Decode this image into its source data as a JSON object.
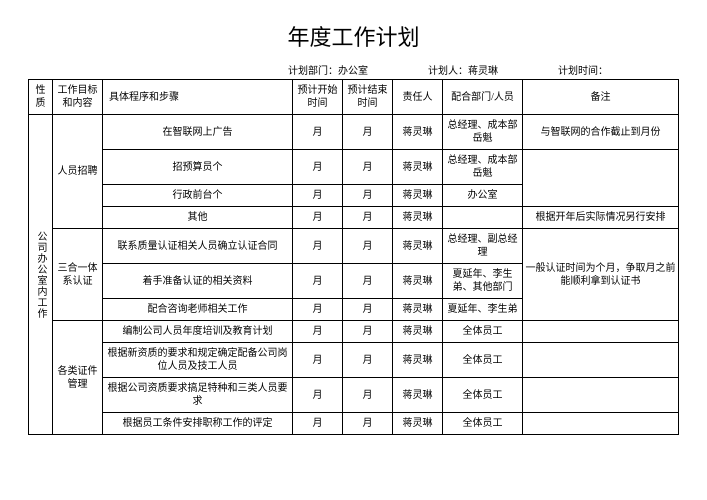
{
  "title": "年度工作计划",
  "meta": {
    "dept_label": "计划部门：",
    "dept_value": "办公室",
    "person_label": "计划人：",
    "person_value": "蒋灵琳",
    "time_label": "计划时间：",
    "time_value": ""
  },
  "headers": {
    "nature": "性质",
    "goal": "工作目标和内容",
    "step": "具体程序和步骤",
    "start": "预计开始时间",
    "end": "预计结束时间",
    "person": "责任人",
    "dept": "配合部门/人员",
    "remark": "备注"
  },
  "nature": "公司办公室内工作",
  "groups": [
    {
      "goal": "人员招聘",
      "rows": [
        {
          "step": "在智联网上广告",
          "start": "月",
          "end": "月",
          "person": "蒋灵琳",
          "dept": "总经理、成本部岳魁",
          "remark": "与智联网的合作截止到月份"
        },
        {
          "step": "招预算员个",
          "start": "月",
          "end": "月",
          "person": "蒋灵琳",
          "dept": "总经理、成本部岳魁",
          "remark": ""
        },
        {
          "step": "行政前台个",
          "start": "月",
          "end": "月",
          "person": "蒋灵琳",
          "dept": "办公室",
          "remark": ""
        },
        {
          "step": "其他",
          "start": "月",
          "end": "月",
          "person": "蒋灵琳",
          "dept": "",
          "remark": "根据开年后实际情况另行安排"
        }
      ]
    },
    {
      "goal": "三合一体系认证",
      "rows": [
        {
          "step": "联系质量认证相关人员确立认证合同",
          "start": "月",
          "end": "月",
          "person": "蒋灵琳",
          "dept": "总经理、副总经理",
          "remark": ""
        },
        {
          "step": "着手准备认证的相关资料",
          "start": "月",
          "end": "月",
          "person": "蒋灵琳",
          "dept": "夏延年、李生弟、其他部门",
          "remark": ""
        },
        {
          "step": "配合咨询老师相关工作",
          "start": "月",
          "end": "月",
          "person": "蒋灵琳",
          "dept": "夏延年、李生弟",
          "remark": ""
        }
      ],
      "remark_merged": "一般认证时间为个月，争取月之前能顺利拿到认证书"
    },
    {
      "goal": "各类证件管理",
      "rows": [
        {
          "step": "编制公司人员年度培训及教育计划",
          "start": "月",
          "end": "月",
          "person": "蒋灵琳",
          "dept": "全体员工",
          "remark": ""
        },
        {
          "step": "根据新资质的要求和规定确定配备公司岗位人员及技工人员",
          "start": "月",
          "end": "月",
          "person": "蒋灵琳",
          "dept": "全体员工",
          "remark": ""
        },
        {
          "step": "根据公司资质要求搞足特种和三类人员要求",
          "start": "月",
          "end": "月",
          "person": "蒋灵琳",
          "dept": "全体员工",
          "remark": ""
        },
        {
          "step": "根据员工条件安排职称工作的评定",
          "start": "月",
          "end": "月",
          "person": "蒋灵琳",
          "dept": "全体员工",
          "remark": ""
        }
      ]
    }
  ]
}
